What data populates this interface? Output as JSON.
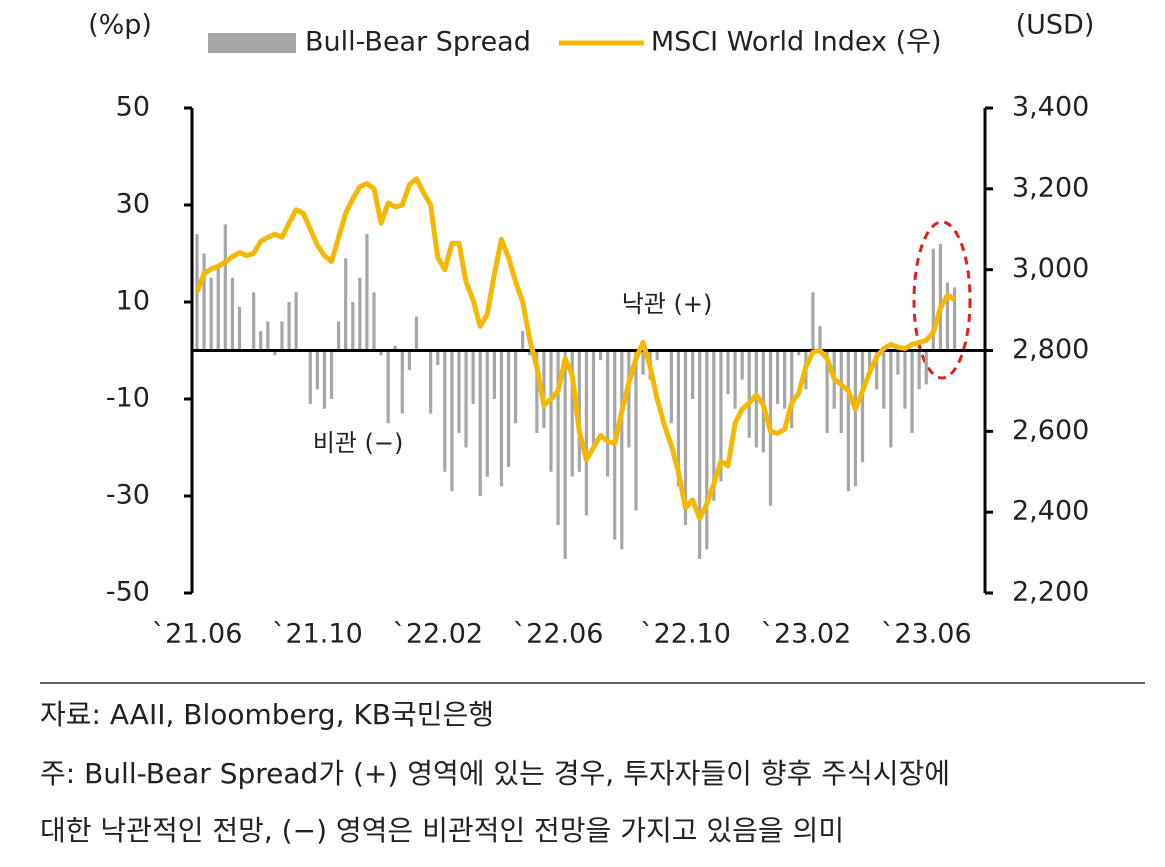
{
  "chart_data": {
    "type": "combo",
    "y_unit_label": "(%p)",
    "y2_unit_label": "(USD)",
    "categories": [
      "`21.06",
      null,
      null,
      null,
      null,
      null,
      null,
      null,
      null,
      null,
      null,
      null,
      null,
      null,
      null,
      null,
      null,
      "`21.10",
      null,
      null,
      null,
      null,
      null,
      null,
      null,
      null,
      null,
      null,
      null,
      null,
      null,
      null,
      null,
      null,
      "`22.02",
      null,
      null,
      null,
      null,
      null,
      null,
      null,
      null,
      null,
      null,
      null,
      null,
      null,
      null,
      null,
      null,
      "`22.06",
      null,
      null,
      null,
      null,
      null,
      null,
      null,
      null,
      null,
      null,
      null,
      null,
      null,
      null,
      null,
      null,
      null,
      "`22.10",
      null,
      null,
      null,
      null,
      null,
      null,
      null,
      null,
      null,
      null,
      null,
      null,
      null,
      null,
      null,
      null,
      "`23.02",
      null,
      null,
      null,
      null,
      null,
      null,
      null,
      null,
      null,
      null,
      null,
      null,
      null,
      null,
      null,
      null,
      "`23.06",
      null,
      null,
      null,
      null
    ],
    "series": [
      {
        "name": "Bull-Bear Spread",
        "type": "bar",
        "color": "#a6a6a6",
        "values": [
          24,
          20,
          15,
          17,
          26,
          15,
          9,
          0,
          12,
          4,
          6,
          -1,
          6,
          10,
          12,
          0,
          -11,
          -8,
          -12,
          -10,
          6,
          19,
          10,
          15,
          24,
          12,
          -1,
          -15,
          1,
          -13,
          -4,
          7,
          0,
          -13,
          -3,
          -25,
          -29,
          -17,
          -20,
          -11,
          -30,
          -26,
          -10,
          -28,
          -24,
          -15,
          4,
          -1,
          -17,
          -16,
          -25,
          -36,
          -43,
          -26,
          -25,
          -34,
          -20,
          -2,
          -26,
          -39,
          -41,
          -20,
          -33,
          -5,
          -6,
          -2,
          0,
          -15,
          -28,
          -36,
          -10,
          -43,
          -41,
          -31,
          -27,
          -9,
          -12,
          -6,
          -18,
          -20,
          -21,
          -32,
          -11,
          -12,
          -16,
          -1,
          -8,
          12,
          5,
          -17,
          -12,
          -17,
          -29,
          -28,
          -23,
          -5,
          -8,
          -12,
          -20,
          -5,
          -12,
          -17,
          -8,
          -7,
          21,
          22,
          14,
          13
        ]
      },
      {
        "name": "MSCI World Index (우)",
        "type": "line",
        "axis": "y2",
        "color": "#f5b800",
        "values": [
          2945,
          2990,
          3002,
          3008,
          3019,
          3032,
          3042,
          3035,
          3040,
          3070,
          3080,
          3088,
          3080,
          3115,
          3148,
          3140,
          3100,
          3060,
          3035,
          3020,
          3080,
          3140,
          3175,
          3205,
          3213,
          3200,
          3115,
          3165,
          3155,
          3160,
          3210,
          3225,
          3190,
          3160,
          3030,
          3000,
          3065,
          3065,
          2970,
          2925,
          2860,
          2890,
          2990,
          3075,
          3030,
          2970,
          2920,
          2826,
          2760,
          2665,
          2680,
          2700,
          2780,
          2740,
          2600,
          2530,
          2560,
          2590,
          2575,
          2570,
          2650,
          2720,
          2780,
          2820,
          2760,
          2680,
          2616,
          2565,
          2500,
          2410,
          2430,
          2385,
          2420,
          2470,
          2525,
          2515,
          2620,
          2655,
          2670,
          2690,
          2665,
          2600,
          2595,
          2605,
          2670,
          2695,
          2760,
          2796,
          2800,
          2780,
          2730,
          2715,
          2700,
          2655,
          2700,
          2745,
          2785,
          2805,
          2815,
          2808,
          2805,
          2815,
          2820,
          2825,
          2845,
          2905,
          2937,
          2925
        ]
      }
    ],
    "ylim": [
      -50,
      50
    ],
    "yticks": [
      50,
      30,
      10,
      -10,
      -30,
      -50
    ],
    "y2lim": [
      2200,
      3400
    ],
    "y2ticks": [
      {
        "value": 3400,
        "label": "3,400"
      },
      {
        "value": 3200,
        "label": "3,200"
      },
      {
        "value": 3000,
        "label": "3,000"
      },
      {
        "value": 2800,
        "label": "2,800"
      },
      {
        "value": 2600,
        "label": "2,600"
      },
      {
        "value": 2400,
        "label": "2,400"
      },
      {
        "value": 2200,
        "label": "2,200"
      }
    ],
    "annotations": [
      "낙관 (+)",
      "비관 (−)"
    ],
    "footer": {
      "source": "자료: AAII, Bloomberg, KB국민은행",
      "note_lines": [
        "주: Bull-Bear Spread가 (+) 영역에 있는 경우, 투자자들이 향후 주식시장에",
        "대한 낙관적인 전망, (−) 영역은 비관적인 전망을 가지고 있음을 의미"
      ]
    }
  }
}
